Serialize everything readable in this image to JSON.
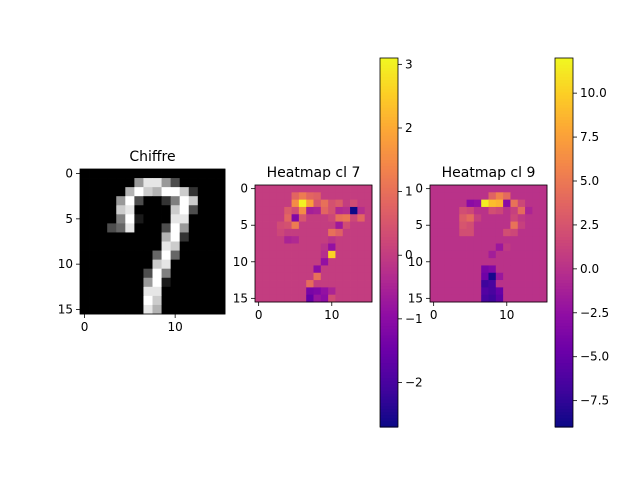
{
  "chart_data": [
    {
      "type": "heatmap",
      "title": "Chiffre",
      "colormap": "gray",
      "x_ticks": [
        0,
        10
      ],
      "y_ticks": [
        0,
        5,
        10,
        15
      ],
      "grid": false,
      "values": [
        [
          0,
          0,
          0,
          0,
          0,
          0,
          0,
          0,
          0,
          0,
          0,
          0,
          0,
          0,
          0,
          0
        ],
        [
          0,
          0,
          0,
          0,
          0,
          0,
          0.6,
          0.9,
          0.9,
          0.6,
          0.3,
          0,
          0,
          0,
          0,
          0
        ],
        [
          0,
          0,
          0,
          0,
          0,
          0.7,
          1,
          0.8,
          0.7,
          1,
          1,
          0.8,
          0.2,
          0,
          0,
          0
        ],
        [
          0,
          0,
          0,
          0,
          0.6,
          1,
          0.3,
          0,
          0,
          0.2,
          0.5,
          1,
          0.8,
          0,
          0,
          0
        ],
        [
          0,
          0,
          0,
          0,
          0.8,
          0.9,
          0,
          0,
          0,
          0,
          0.8,
          1,
          0.3,
          0,
          0,
          0
        ],
        [
          0,
          0,
          0,
          0,
          0.5,
          1,
          0.1,
          0,
          0,
          0,
          0.9,
          0.9,
          0,
          0,
          0,
          0
        ],
        [
          0,
          0,
          0,
          0.3,
          0.4,
          0.9,
          0,
          0,
          0,
          0.3,
          1,
          0.6,
          0,
          0,
          0,
          0
        ],
        [
          0,
          0,
          0,
          0,
          0,
          0,
          0,
          0,
          0,
          0.7,
          1,
          0.2,
          0,
          0,
          0,
          0
        ],
        [
          0,
          0,
          0,
          0,
          0,
          0,
          0,
          0,
          0,
          0.9,
          0.8,
          0,
          0,
          0,
          0,
          0
        ],
        [
          0,
          0,
          0,
          0,
          0,
          0,
          0,
          0,
          0.4,
          1,
          0.4,
          0,
          0,
          0,
          0,
          0
        ],
        [
          0,
          0,
          0,
          0,
          0,
          0,
          0,
          0,
          0.8,
          0.9,
          0,
          0,
          0,
          0,
          0,
          0
        ],
        [
          0,
          0,
          0,
          0,
          0,
          0,
          0,
          0.3,
          1,
          0.5,
          0,
          0,
          0,
          0,
          0,
          0
        ],
        [
          0,
          0,
          0,
          0,
          0,
          0,
          0,
          0.6,
          1,
          0.1,
          0,
          0,
          0,
          0,
          0,
          0
        ],
        [
          0,
          0,
          0,
          0,
          0,
          0,
          0,
          0.9,
          0.9,
          0,
          0,
          0,
          0,
          0,
          0,
          0
        ],
        [
          0,
          0,
          0,
          0,
          0,
          0,
          0,
          1,
          0.8,
          0,
          0,
          0,
          0,
          0,
          0,
          0
        ],
        [
          0,
          0,
          0,
          0,
          0,
          0,
          0,
          0.9,
          0.7,
          0,
          0,
          0,
          0,
          0,
          0,
          0
        ]
      ]
    },
    {
      "type": "heatmap",
      "title": "Heatmap cl 7",
      "colormap": "plasma",
      "x_ticks": [
        0,
        10
      ],
      "y_ticks": [
        0,
        5,
        10,
        15
      ],
      "colorbar": {
        "range": [
          -2.7,
          3.1
        ],
        "ticks": [
          -2,
          -1,
          0,
          1,
          2,
          3
        ]
      },
      "grid": false,
      "values": [
        [
          0,
          0,
          0,
          0,
          0,
          0,
          0,
          0,
          0,
          0,
          0,
          0,
          0,
          0,
          0,
          0
        ],
        [
          0,
          0,
          0,
          0,
          0,
          0.8,
          1.2,
          0.8,
          0.7,
          0,
          0,
          0,
          0,
          0,
          0,
          0
        ],
        [
          0,
          0,
          0,
          0,
          0,
          1.5,
          3.0,
          1.8,
          0.5,
          1.0,
          0.4,
          0.6,
          0,
          0.3,
          0,
          0
        ],
        [
          0,
          0,
          0,
          0,
          0.6,
          0.3,
          1.5,
          -0.6,
          -0.5,
          0.8,
          0.4,
          -0.4,
          -0.3,
          -2.7,
          -0.3,
          0
        ],
        [
          0,
          0,
          0,
          0,
          0.8,
          -1.2,
          0.5,
          0,
          0,
          0,
          0.2,
          1.0,
          1.1,
          0.2,
          0.8,
          0
        ],
        [
          0,
          0,
          0,
          0.3,
          0.4,
          1.2,
          0,
          0,
          0,
          0,
          0,
          -0.7,
          0.3,
          0,
          0,
          0
        ],
        [
          0,
          0,
          0,
          0.2,
          0,
          0,
          0,
          0,
          0,
          0,
          1.0,
          0.7,
          0,
          0,
          0,
          0
        ],
        [
          0,
          0,
          0,
          0,
          -0.5,
          -0.4,
          0,
          0,
          0,
          0,
          -0.2,
          0,
          0,
          0,
          0,
          0
        ],
        [
          0,
          0,
          0,
          0,
          0,
          0,
          0,
          0,
          0,
          -0.2,
          -0.9,
          0,
          0,
          0,
          0,
          0
        ],
        [
          0,
          0,
          0,
          0,
          0,
          0,
          0,
          0,
          0,
          -0.3,
          2.6,
          0,
          0,
          0,
          0,
          0
        ],
        [
          0,
          0,
          0,
          0,
          0,
          0,
          0,
          0,
          0,
          -0.9,
          0,
          0,
          0,
          0,
          0,
          0
        ],
        [
          0,
          0,
          0,
          0,
          0,
          0,
          0,
          0,
          -1.0,
          0,
          0,
          0,
          0,
          0,
          0,
          0
        ],
        [
          0,
          0,
          0,
          0,
          0,
          0,
          0,
          0,
          1.0,
          0,
          0,
          0,
          0,
          0,
          0,
          0
        ],
        [
          0,
          0,
          0,
          0,
          0,
          0,
          0,
          0.9,
          0,
          0,
          0,
          0,
          0,
          0,
          0,
          0
        ],
        [
          0,
          0,
          0,
          0,
          0,
          0,
          0,
          -1.3,
          -1.2,
          -0.9,
          -0.5,
          0,
          0,
          0,
          0,
          0
        ],
        [
          0,
          0,
          0,
          0,
          0,
          0,
          0,
          -1.6,
          -0.8,
          -1.0,
          0.3,
          0,
          0,
          0,
          0,
          0
        ]
      ]
    },
    {
      "type": "heatmap",
      "title": "Heatmap cl 9",
      "colormap": "plasma",
      "x_ticks": [
        0,
        10
      ],
      "y_ticks": [
        0,
        5,
        10,
        15
      ],
      "colorbar": {
        "range": [
          -9,
          12
        ],
        "ticks": [
          -7.5,
          -5.0,
          -2.5,
          0.0,
          2.5,
          5.0,
          7.5,
          10.0
        ]
      },
      "grid": false,
      "values": [
        [
          0,
          0,
          0,
          0,
          0,
          0,
          0,
          0,
          0,
          0,
          0,
          0,
          0,
          0,
          0,
          0
        ],
        [
          0,
          0,
          0,
          0,
          0,
          0,
          0,
          0,
          3.5,
          5.5,
          4.0,
          0,
          0,
          0,
          0,
          0
        ],
        [
          0,
          0,
          0,
          0,
          0,
          -3.0,
          -2.5,
          11.5,
          9.0,
          8.5,
          -3.0,
          4.5,
          1.5,
          0,
          0,
          0
        ],
        [
          0,
          0,
          0,
          0,
          2.0,
          1.5,
          0,
          0,
          2.0,
          1.5,
          0,
          1.0,
          4.0,
          -1.0,
          0,
          0
        ],
        [
          0,
          0,
          0,
          0,
          3.0,
          4.0,
          1.0,
          0,
          0,
          0,
          0,
          1.5,
          0.5,
          0,
          0,
          0
        ],
        [
          0,
          0,
          0,
          0,
          2.5,
          2.0,
          0,
          0,
          0,
          0,
          0,
          4.5,
          1.0,
          0,
          0,
          0
        ],
        [
          0,
          0,
          0,
          0,
          2.0,
          2.0,
          0,
          0,
          0,
          0,
          2.0,
          1.5,
          0,
          0,
          0,
          0
        ],
        [
          0,
          0,
          0,
          0,
          0,
          0,
          0,
          0,
          0,
          0,
          0,
          0,
          0,
          0,
          0,
          0
        ],
        [
          0,
          0,
          0,
          0,
          0,
          0,
          0,
          0,
          0,
          -2.0,
          0.5,
          0,
          0,
          0,
          0,
          0
        ],
        [
          0,
          0,
          0,
          0,
          0,
          0,
          0,
          0,
          -1.5,
          0,
          0,
          0,
          0,
          0,
          0,
          0
        ],
        [
          0,
          0,
          0,
          0,
          0,
          0,
          0,
          0,
          0,
          0,
          0,
          0,
          0,
          0,
          0,
          0
        ],
        [
          0,
          0,
          0,
          0,
          0,
          0,
          0,
          -4.0,
          -3.5,
          0,
          0,
          0,
          0,
          0,
          0,
          0
        ],
        [
          0,
          0,
          0,
          0,
          0,
          0,
          0,
          -4.5,
          -8.5,
          -2.0,
          0,
          0,
          0,
          0,
          0,
          0
        ],
        [
          0,
          0,
          0,
          0,
          0,
          0,
          0,
          -7.0,
          -6.5,
          0,
          0,
          0,
          0,
          0,
          0,
          0
        ],
        [
          0,
          0,
          0,
          0,
          0,
          0,
          0,
          -6.0,
          -6.5,
          -5.0,
          0,
          0,
          0,
          0,
          0,
          0
        ],
        [
          0,
          0,
          0,
          0,
          0,
          0,
          0,
          -6.5,
          -7.0,
          -5.5,
          0,
          0,
          0,
          0,
          0,
          0
        ]
      ]
    }
  ]
}
